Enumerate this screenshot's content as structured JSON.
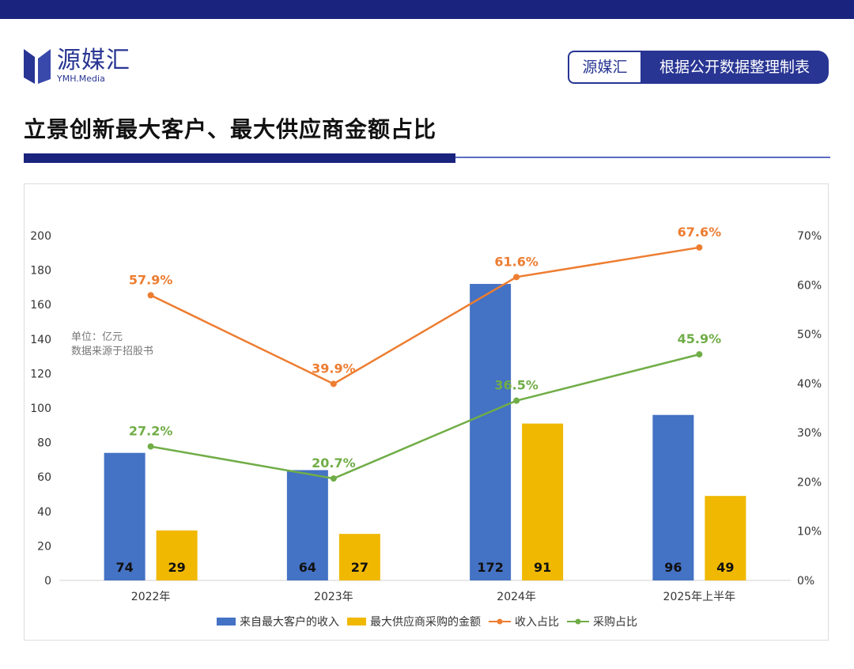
{
  "brand": {
    "name": "源媒汇",
    "sub": "YMH.Media",
    "tag_left": "源媒汇",
    "tag_right": "根据公开数据整理制表"
  },
  "title": "立景创新最大客户、最大供应商金额占比",
  "note": {
    "unit": "单位：亿元",
    "source": "数据来源于招股书"
  },
  "colors": {
    "primary": "#1a237e",
    "bar_revenue": "#4472c4",
    "bar_purchase": "#f0b800",
    "line_revenue_pct": "#ed7d31",
    "line_purchase_pct": "#70ad47"
  },
  "chart_data": {
    "type": "bar",
    "categories": [
      "2022年",
      "2023年",
      "2024年",
      "2025年上半年"
    ],
    "y_left": {
      "min": 0,
      "max": 200,
      "step": 20,
      "ticks": [
        "0",
        "20",
        "40",
        "60",
        "80",
        "100",
        "120",
        "140",
        "160",
        "180",
        "200"
      ]
    },
    "y_right": {
      "min": 0,
      "max": 70,
      "step": 10,
      "ticks": [
        "0%",
        "10%",
        "20%",
        "30%",
        "40%",
        "50%",
        "60%",
        "70%"
      ]
    },
    "series": [
      {
        "name": "来自最大客户的收入",
        "kind": "bar",
        "axis": "left",
        "values": [
          74,
          64,
          172,
          96
        ],
        "labels": [
          "74",
          "64",
          "172",
          "96"
        ]
      },
      {
        "name": "最大供应商采购的金额",
        "kind": "bar",
        "axis": "left",
        "values": [
          29,
          27,
          91,
          49
        ],
        "labels": [
          "29",
          "27",
          "91",
          "49"
        ]
      },
      {
        "name": "收入占比",
        "kind": "line",
        "axis": "right",
        "values": [
          57.9,
          39.9,
          61.6,
          67.6
        ],
        "labels": [
          "57.9%",
          "39.9%",
          "61.6%",
          "67.6%"
        ]
      },
      {
        "name": "采购占比",
        "kind": "line",
        "axis": "right",
        "values": [
          27.2,
          20.7,
          36.5,
          45.9
        ],
        "labels": [
          "27.2%",
          "20.7%",
          "36.5%",
          "45.9%"
        ]
      }
    ]
  }
}
